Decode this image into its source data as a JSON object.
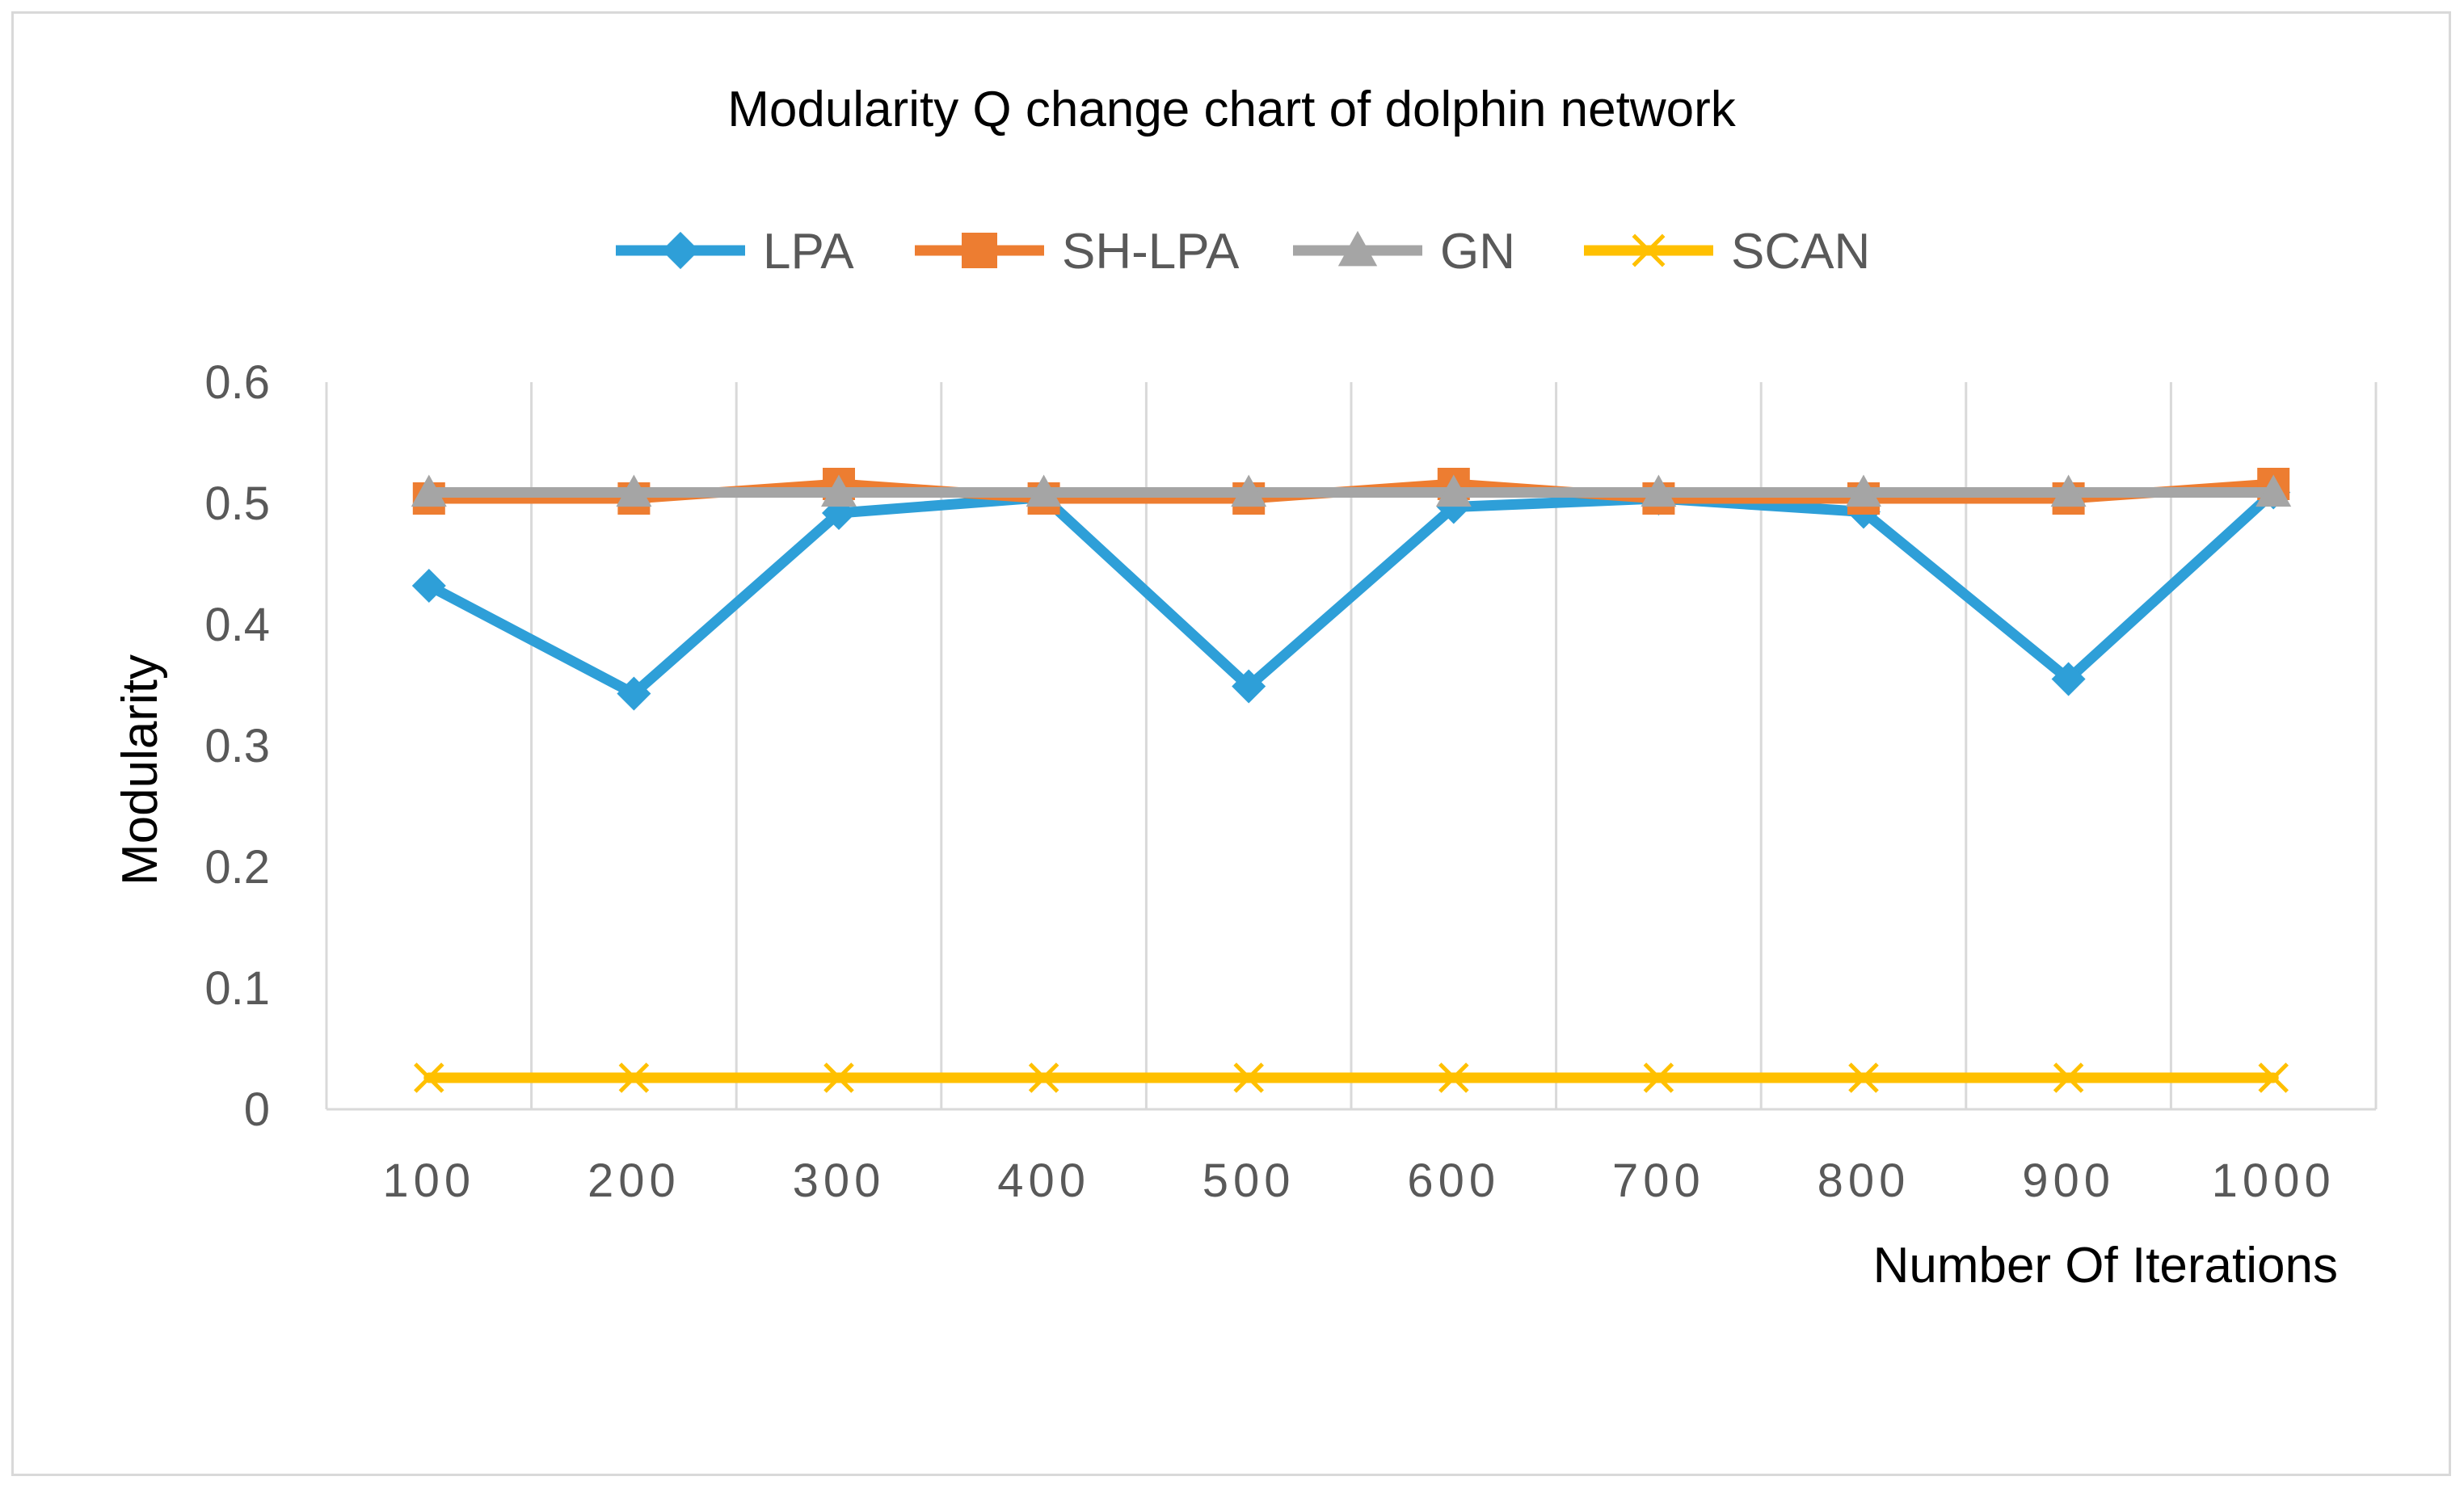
{
  "chart_data": {
    "type": "line",
    "title": "Modularity Q change chart of dolphin network",
    "xlabel": "Number Of Iterations",
    "ylabel": "Modularity",
    "categories": [
      "100",
      "200",
      "300",
      "400",
      "500",
      "600",
      "700",
      "800",
      "900",
      "1000"
    ],
    "ylim": [
      0,
      0.6
    ],
    "yticks": [
      0,
      0.1,
      0.2,
      0.3,
      0.4,
      0.5,
      0.6
    ],
    "ytick_labels": [
      "0",
      "0.1",
      "0.2",
      "0.3",
      "0.4",
      "0.5",
      "0.6"
    ],
    "grid": "vertical",
    "legend_position": "top",
    "series": [
      {
        "name": "LPA",
        "color": "#2E9FD8",
        "marker": "diamond",
        "values": [
          0.432,
          0.343,
          0.492,
          0.505,
          0.349,
          0.497,
          0.504,
          0.493,
          0.355,
          0.509
        ]
      },
      {
        "name": "SH-LPA",
        "color": "#ED7D31",
        "marker": "square",
        "values": [
          0.504,
          0.504,
          0.516,
          0.504,
          0.504,
          0.516,
          0.504,
          0.504,
          0.504,
          0.516
        ]
      },
      {
        "name": "GN",
        "color": "#A5A5A5",
        "marker": "triangle",
        "values": [
          0.509,
          0.509,
          0.509,
          0.509,
          0.509,
          0.509,
          0.509,
          0.509,
          0.509,
          0.509
        ]
      },
      {
        "name": "SCAN",
        "color": "#FFC000",
        "marker": "x",
        "values": [
          0.026,
          0.026,
          0.026,
          0.026,
          0.026,
          0.026,
          0.026,
          0.026,
          0.026,
          0.026
        ]
      }
    ]
  }
}
